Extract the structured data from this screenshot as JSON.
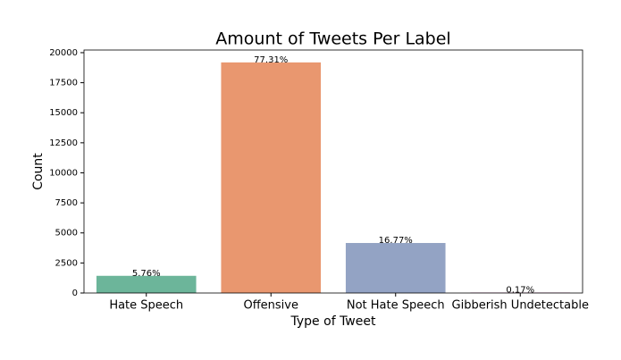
{
  "chart_data": {
    "type": "bar",
    "title": "Amount of Tweets Per Label",
    "x_label": "Type of Tweet",
    "y_label": "Count",
    "categories": [
      "Hate Speech",
      "Offensive",
      "Not Hate Speech",
      "Gibberish Undetectable"
    ],
    "values": [
      1430,
      19190,
      4162,
      42
    ],
    "percent_labels": [
      "5.76%",
      "77.31%",
      "16.77%",
      "0.17%"
    ],
    "colors": [
      "#6cb59a",
      "#e9976f",
      "#93a3c4",
      "#d18fb7"
    ],
    "ylim": [
      0,
      20220
    ],
    "yticks": [
      0,
      2500,
      5000,
      7500,
      10000,
      12500,
      15000,
      17500,
      20000
    ]
  }
}
